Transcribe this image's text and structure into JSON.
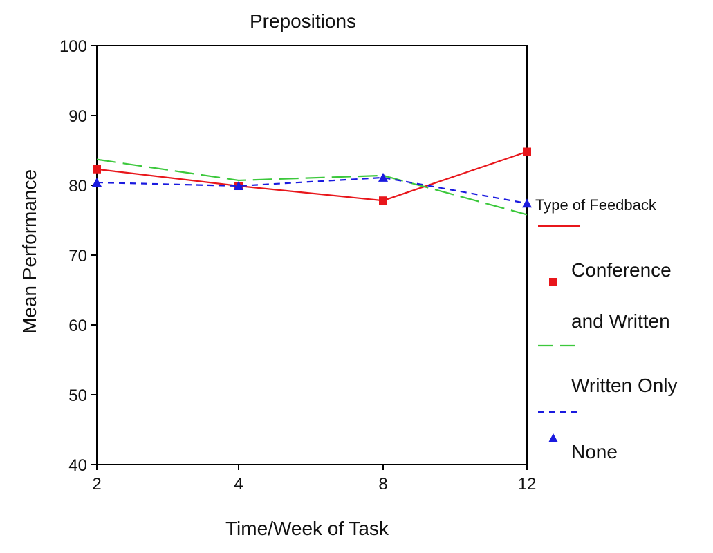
{
  "chart_data": {
    "type": "line",
    "title": "Prepositions",
    "xlabel": "Time/Week of Task",
    "ylabel": "Mean Performance",
    "categories": [
      "2",
      "4",
      "8",
      "12"
    ],
    "ylim": [
      40,
      100
    ],
    "yticks": [
      40,
      50,
      60,
      70,
      80,
      90,
      100
    ],
    "grid": false,
    "legend": {
      "title": "Type of Feedback",
      "placement": "right"
    },
    "series": [
      {
        "name": "Conference and Written",
        "values": [
          82.3,
          79.9,
          77.8,
          84.8
        ],
        "color": "#e8161b",
        "line": "solid",
        "marker": "square"
      },
      {
        "name": "Written Only",
        "values": [
          83.7,
          80.7,
          81.4,
          75.8
        ],
        "color": "#3cc83c",
        "line": "long-dash",
        "marker": "none"
      },
      {
        "name": "None",
        "values": [
          80.4,
          79.9,
          81.1,
          77.4
        ],
        "color": "#1a1adf",
        "line": "short-dash",
        "marker": "triangle"
      }
    ]
  }
}
